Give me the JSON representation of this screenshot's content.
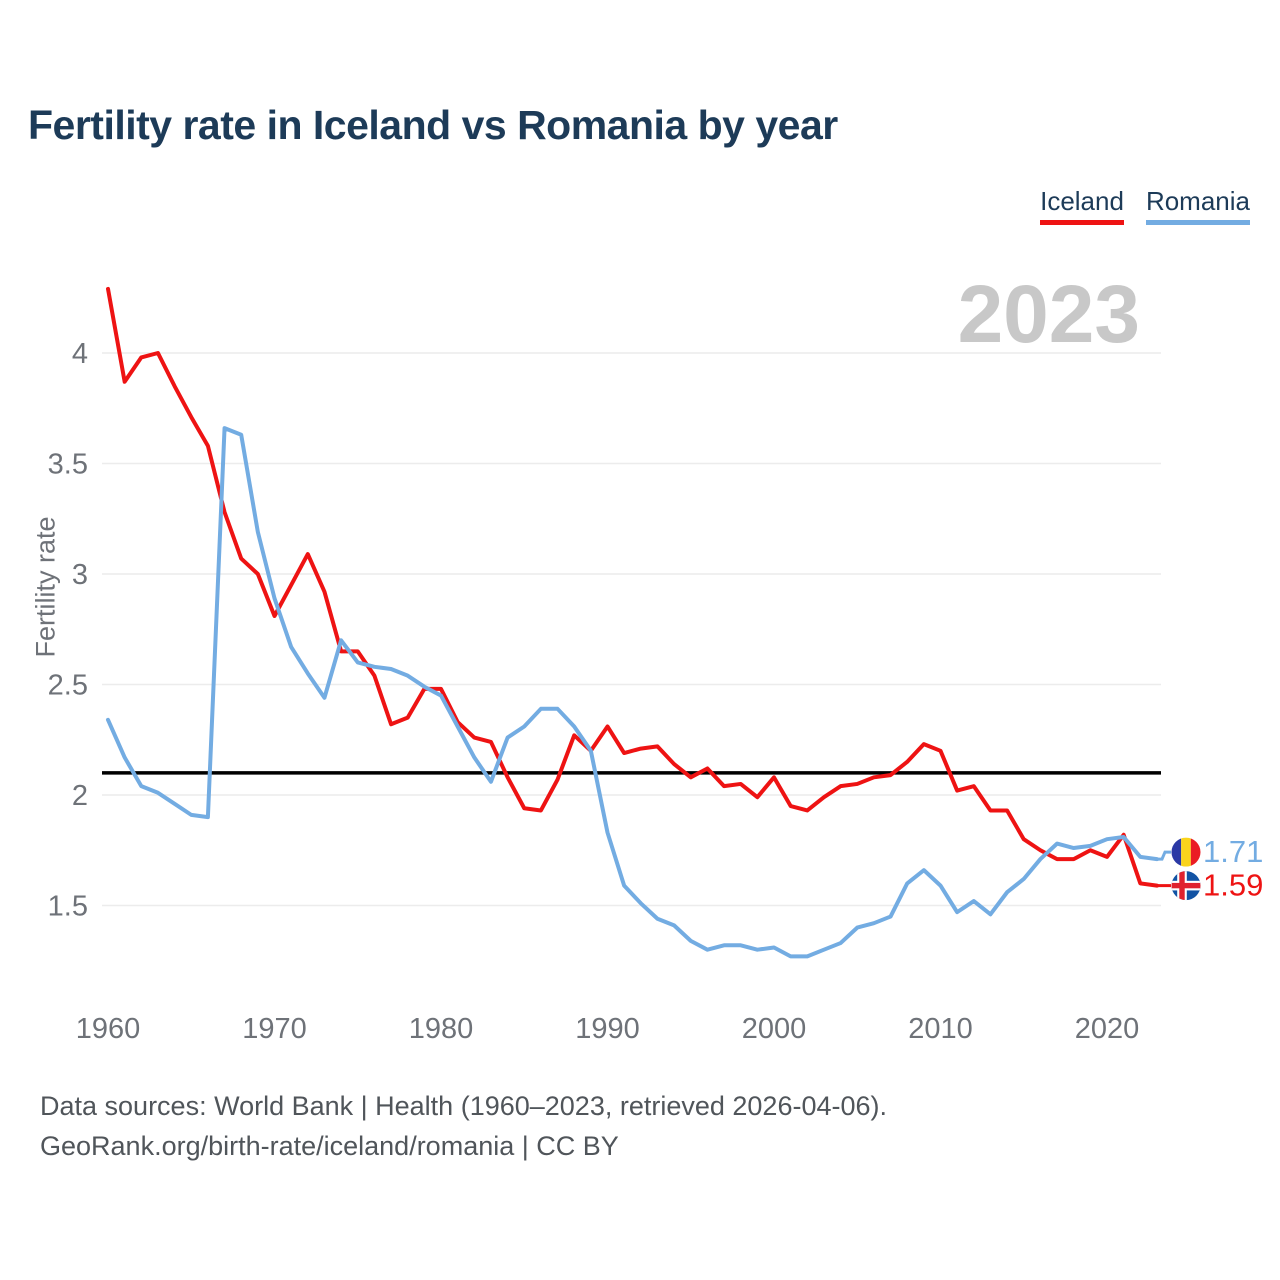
{
  "title": "Fertility rate in Iceland vs Romania by year",
  "watermark": "2023",
  "legend": {
    "items": [
      {
        "label": "Iceland",
        "color": "#ee1313"
      },
      {
        "label": "Romania",
        "color": "#73ace2"
      }
    ]
  },
  "y_axis": {
    "label": "Fertility rate"
  },
  "footer": {
    "line1": "Data sources: World Bank | Health (1960–2023, retrieved 2026-04-06).",
    "line2": "GeoRank.org/birth-rate/iceland/romania | CC BY"
  },
  "end_labels": [
    {
      "series": "Romania",
      "value": "1.71",
      "flag": "romania-flag",
      "color": "#73ace2"
    },
    {
      "series": "Iceland",
      "value": "1.59",
      "flag": "iceland-flag",
      "color": "#ee1313"
    }
  ],
  "flag_colors": {
    "romania": {
      "blue": "#2b39a5",
      "yellow": "#fad41c",
      "red": "#ea1c24"
    },
    "iceland": {
      "blue": "#1253a4",
      "white": "#ffffff",
      "red": "#e0222e"
    }
  },
  "chart_data": {
    "type": "line",
    "title": "Fertility rate in Iceland vs Romania by year",
    "xlabel": "",
    "ylabel": "Fertility rate",
    "ylim": [
      1.1,
      4.35
    ],
    "yticks": [
      4,
      3.5,
      3,
      2.5,
      2,
      1.5
    ],
    "xticks": [
      1960,
      1970,
      1980,
      1990,
      2000,
      2010,
      2020
    ],
    "reference_line": 2.1,
    "grid": true,
    "legend_position": "top-right",
    "x": [
      1960,
      1961,
      1962,
      1963,
      1964,
      1965,
      1966,
      1967,
      1968,
      1969,
      1970,
      1971,
      1972,
      1973,
      1974,
      1975,
      1976,
      1977,
      1978,
      1979,
      1980,
      1981,
      1982,
      1983,
      1984,
      1985,
      1986,
      1987,
      1988,
      1989,
      1990,
      1991,
      1992,
      1993,
      1994,
      1995,
      1996,
      1997,
      1998,
      1999,
      2000,
      2001,
      2002,
      2003,
      2004,
      2005,
      2006,
      2007,
      2008,
      2009,
      2010,
      2011,
      2012,
      2013,
      2014,
      2015,
      2016,
      2017,
      2018,
      2019,
      2020,
      2021,
      2022,
      2023
    ],
    "series": [
      {
        "name": "Iceland",
        "color": "#ee1313",
        "values": [
          4.29,
          3.87,
          3.98,
          4.0,
          3.85,
          3.71,
          3.58,
          3.28,
          3.07,
          3.0,
          2.81,
          2.95,
          3.09,
          2.92,
          2.65,
          2.65,
          2.54,
          2.32,
          2.35,
          2.48,
          2.48,
          2.33,
          2.26,
          2.24,
          2.08,
          1.94,
          1.93,
          2.07,
          2.27,
          2.2,
          2.31,
          2.19,
          2.21,
          2.22,
          2.14,
          2.08,
          2.12,
          2.04,
          2.05,
          1.99,
          2.08,
          1.95,
          1.93,
          1.99,
          2.04,
          2.05,
          2.08,
          2.09,
          2.15,
          2.23,
          2.2,
          2.02,
          2.04,
          1.93,
          1.93,
          1.8,
          1.75,
          1.71,
          1.71,
          1.75,
          1.72,
          1.82,
          1.6,
          1.59
        ]
      },
      {
        "name": "Romania",
        "color": "#73ace2",
        "values": [
          2.34,
          2.17,
          2.04,
          2.01,
          1.96,
          1.91,
          1.9,
          3.66,
          3.63,
          3.19,
          2.89,
          2.67,
          2.55,
          2.44,
          2.7,
          2.6,
          2.58,
          2.57,
          2.54,
          2.49,
          2.45,
          2.31,
          2.17,
          2.06,
          2.26,
          2.31,
          2.39,
          2.39,
          2.31,
          2.2,
          1.83,
          1.59,
          1.51,
          1.44,
          1.41,
          1.34,
          1.3,
          1.32,
          1.32,
          1.3,
          1.31,
          1.27,
          1.27,
          1.3,
          1.33,
          1.4,
          1.42,
          1.45,
          1.6,
          1.66,
          1.59,
          1.47,
          1.52,
          1.46,
          1.56,
          1.62,
          1.71,
          1.78,
          1.76,
          1.77,
          1.8,
          1.81,
          1.72,
          1.71
        ]
      }
    ]
  }
}
